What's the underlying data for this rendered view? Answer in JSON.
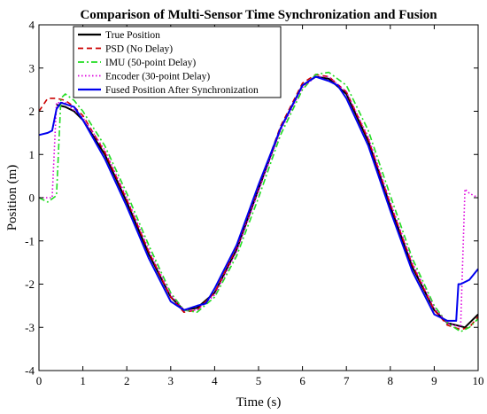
{
  "chart_data": {
    "type": "line",
    "title": "Comparison of Multi-Sensor Time Synchronization and Fusion",
    "xlabel": "Time (s)",
    "ylabel": "Position (m)",
    "xlim": [
      0,
      10
    ],
    "ylim": [
      -4,
      4
    ],
    "xticks": [
      "0",
      "1",
      "2",
      "3",
      "4",
      "5",
      "6",
      "7",
      "8",
      "9",
      "10"
    ],
    "yticks": [
      "-4",
      "-3",
      "-2",
      "-1",
      "0",
      "1",
      "2",
      "3",
      "4"
    ],
    "grid": false,
    "legend_position": "top-left",
    "series": [
      {
        "name": "True Position",
        "color": "#000000",
        "style": "solid",
        "x": [
          0.4,
          0.6,
          0.8,
          1.0,
          1.5,
          2.0,
          2.5,
          3.0,
          3.3,
          3.6,
          4.0,
          4.5,
          5.0,
          5.5,
          6.0,
          6.3,
          6.6,
          7.0,
          7.5,
          8.0,
          8.5,
          9.0,
          9.3,
          9.5,
          9.7,
          10.0
        ],
        "y": [
          2.15,
          2.1,
          2.0,
          1.8,
          1.0,
          -0.1,
          -1.3,
          -2.3,
          -2.6,
          -2.55,
          -2.2,
          -1.2,
          0.2,
          1.6,
          2.6,
          2.8,
          2.75,
          2.4,
          1.3,
          -0.2,
          -1.6,
          -2.6,
          -2.9,
          -2.95,
          -3.0,
          -2.7
        ]
      },
      {
        "name": "PSD (No Delay)",
        "color": "#cc0000",
        "style": "dashed",
        "x": [
          0.0,
          0.2,
          0.4,
          0.6,
          0.8,
          1.0,
          1.5,
          2.0,
          2.5,
          3.0,
          3.3,
          3.6,
          4.0,
          4.5,
          5.0,
          5.5,
          6.0,
          6.3,
          6.6,
          7.0,
          7.5,
          8.0,
          8.5,
          9.0,
          9.3,
          9.6,
          9.8,
          10.0
        ],
        "y": [
          2.0,
          2.3,
          2.3,
          2.25,
          2.1,
          1.9,
          1.05,
          -0.05,
          -1.25,
          -2.3,
          -2.65,
          -2.6,
          -2.2,
          -1.15,
          0.25,
          1.65,
          2.65,
          2.85,
          2.8,
          2.45,
          1.35,
          -0.15,
          -1.55,
          -2.6,
          -2.95,
          -3.05,
          -3.0,
          -2.75
        ]
      },
      {
        "name": "IMU (50-point Delay)",
        "color": "#22dd22",
        "style": "dashdot",
        "x": [
          0.0,
          0.2,
          0.4,
          0.5,
          0.6,
          0.8,
          1.0,
          1.5,
          2.0,
          2.5,
          3.0,
          3.3,
          3.6,
          4.0,
          4.5,
          5.0,
          5.5,
          6.0,
          6.3,
          6.6,
          7.0,
          7.5,
          8.0,
          8.5,
          9.0,
          9.3,
          9.6,
          9.8,
          10.0
        ],
        "y": [
          0.0,
          -0.1,
          0.05,
          2.3,
          2.4,
          2.25,
          2.0,
          1.2,
          0.1,
          -1.1,
          -2.2,
          -2.6,
          -2.65,
          -2.3,
          -1.35,
          0.0,
          1.45,
          2.5,
          2.85,
          2.9,
          2.6,
          1.55,
          0.05,
          -1.4,
          -2.5,
          -2.9,
          -3.1,
          -3.0,
          -2.8
        ]
      },
      {
        "name": "Encoder (30-point Delay)",
        "color": "#dd00dd",
        "style": "dotted",
        "x": [
          0.0,
          0.2,
          0.3,
          0.4,
          0.6,
          1.0,
          1.5,
          2.0,
          2.5,
          3.0,
          3.3,
          3.6,
          4.0,
          4.5,
          5.0,
          5.5,
          6.0,
          6.3,
          6.6,
          7.0,
          7.5,
          8.0,
          8.5,
          9.0,
          9.3,
          9.6,
          9.7,
          9.8,
          10.0
        ],
        "y": [
          0.0,
          0.0,
          0.0,
          2.2,
          2.2,
          1.85,
          1.1,
          0.0,
          -1.2,
          -2.25,
          -2.6,
          -2.6,
          -2.25,
          -1.25,
          0.15,
          1.55,
          2.55,
          2.8,
          2.8,
          2.45,
          1.4,
          -0.1,
          -1.5,
          -2.55,
          -2.9,
          -3.0,
          0.2,
          0.1,
          0.0
        ]
      },
      {
        "name": "Fused Position After Synchronization",
        "color": "#0000ee",
        "style": "solid",
        "x": [
          0.0,
          0.2,
          0.3,
          0.4,
          0.5,
          0.8,
          1.0,
          1.5,
          2.0,
          2.5,
          3.0,
          3.3,
          3.6,
          3.8,
          4.0,
          4.5,
          5.0,
          5.5,
          6.0,
          6.3,
          6.6,
          6.8,
          7.0,
          7.5,
          8.0,
          8.5,
          9.0,
          9.3,
          9.5,
          9.55,
          9.6,
          9.8,
          10.0
        ],
        "y": [
          1.45,
          1.5,
          1.55,
          2.05,
          2.2,
          2.1,
          1.8,
          0.9,
          -0.2,
          -1.4,
          -2.4,
          -2.6,
          -2.5,
          -2.45,
          -2.1,
          -1.1,
          0.3,
          1.6,
          2.6,
          2.8,
          2.7,
          2.6,
          2.3,
          1.2,
          -0.3,
          -1.7,
          -2.7,
          -2.85,
          -2.85,
          -2.0,
          -2.0,
          -1.9,
          -1.65
        ]
      }
    ]
  }
}
